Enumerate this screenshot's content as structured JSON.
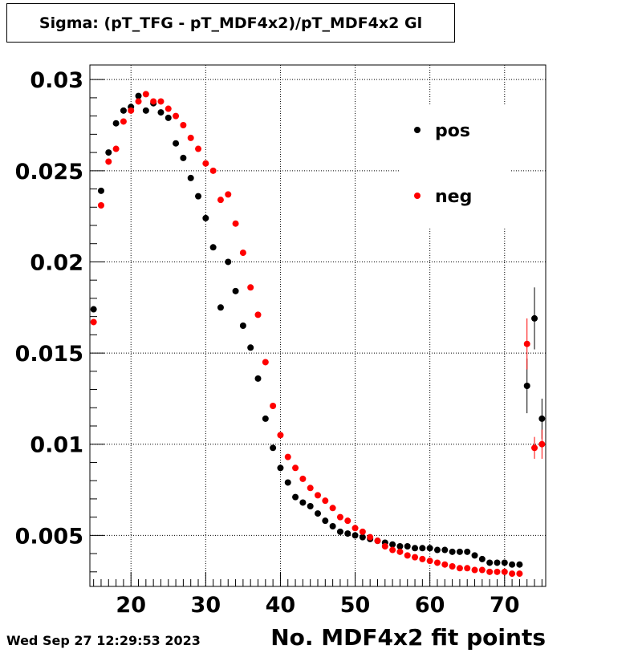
{
  "chart_data": {
    "type": "scatter",
    "title": "Sigma: (pT_TFG - pT_MDF4x2)/pT_MDF4x2 Gl",
    "xlabel": "No. MDF4x2 fit points",
    "ylabel": "",
    "xlim": [
      14.5,
      75.5
    ],
    "ylim": [
      0.0022,
      0.0308
    ],
    "x_ticks": [
      20,
      30,
      40,
      50,
      60,
      70
    ],
    "y_ticks": [
      0.005,
      0.01,
      0.015,
      0.02,
      0.025,
      0.03
    ],
    "y_tick_labels": [
      "0.005",
      "0.01",
      "0.015",
      "0.02",
      "0.025",
      "0.03"
    ],
    "x_tick_labels": [
      "20",
      "30",
      "40",
      "50",
      "60",
      "70"
    ],
    "grid": true,
    "legend_position": "top-right",
    "series": [
      {
        "name": "pos",
        "color": "#000000",
        "points": [
          [
            15,
            0.0174,
            0
          ],
          [
            16,
            0.0239,
            0
          ],
          [
            17,
            0.026,
            0
          ],
          [
            18,
            0.0276,
            0
          ],
          [
            19,
            0.0283,
            0
          ],
          [
            20,
            0.0285,
            0
          ],
          [
            21,
            0.0291,
            0
          ],
          [
            22,
            0.0283,
            0
          ],
          [
            23,
            0.0287,
            0
          ],
          [
            24,
            0.0282,
            0
          ],
          [
            25,
            0.0279,
            0
          ],
          [
            26,
            0.0265,
            0
          ],
          [
            27,
            0.0257,
            0
          ],
          [
            28,
            0.0246,
            0
          ],
          [
            29,
            0.0236,
            0
          ],
          [
            30,
            0.0224,
            0
          ],
          [
            31,
            0.0208,
            0
          ],
          [
            32,
            0.0175,
            0
          ],
          [
            33,
            0.02,
            0
          ],
          [
            34,
            0.0184,
            0
          ],
          [
            35,
            0.0165,
            0
          ],
          [
            36,
            0.0153,
            0
          ],
          [
            37,
            0.0136,
            0
          ],
          [
            38,
            0.0114,
            0
          ],
          [
            39,
            0.0098,
            0
          ],
          [
            40,
            0.0087,
            0
          ],
          [
            41,
            0.0079,
            0
          ],
          [
            42,
            0.0071,
            0
          ],
          [
            43,
            0.0068,
            0
          ],
          [
            44,
            0.0066,
            0
          ],
          [
            45,
            0.0062,
            0
          ],
          [
            46,
            0.0058,
            0
          ],
          [
            47,
            0.0055,
            0
          ],
          [
            48,
            0.0052,
            0
          ],
          [
            49,
            0.0051,
            0
          ],
          [
            50,
            0.005,
            0
          ],
          [
            51,
            0.0049,
            0
          ],
          [
            52,
            0.0048,
            0
          ],
          [
            53,
            0.0047,
            0
          ],
          [
            54,
            0.0046,
            0
          ],
          [
            55,
            0.0045,
            0
          ],
          [
            56,
            0.0044,
            0
          ],
          [
            57,
            0.0044,
            0
          ],
          [
            58,
            0.0043,
            0
          ],
          [
            59,
            0.0043,
            0
          ],
          [
            60,
            0.0043,
            0
          ],
          [
            61,
            0.0042,
            0
          ],
          [
            62,
            0.0042,
            0
          ],
          [
            63,
            0.0041,
            0
          ],
          [
            64,
            0.0041,
            0
          ],
          [
            65,
            0.0041,
            0
          ],
          [
            66,
            0.0039,
            0
          ],
          [
            67,
            0.0037,
            0
          ],
          [
            68,
            0.0035,
            0
          ],
          [
            69,
            0.0035,
            0
          ],
          [
            70,
            0.0035,
            0
          ],
          [
            71,
            0.0034,
            0
          ],
          [
            72,
            0.0034,
            0
          ],
          [
            73,
            0.0132,
            0.0015
          ],
          [
            74,
            0.0169,
            0.0017
          ],
          [
            75,
            0.0114,
            0.0011
          ]
        ]
      },
      {
        "name": "neg",
        "color": "#ff0000",
        "points": [
          [
            15,
            0.0167,
            0
          ],
          [
            16,
            0.0231,
            0
          ],
          [
            17,
            0.0255,
            0
          ],
          [
            18,
            0.0262,
            0
          ],
          [
            19,
            0.0277,
            0
          ],
          [
            20,
            0.0283,
            0
          ],
          [
            21,
            0.0288,
            0
          ],
          [
            22,
            0.0292,
            0
          ],
          [
            23,
            0.0288,
            0
          ],
          [
            24,
            0.0288,
            0
          ],
          [
            25,
            0.0284,
            0
          ],
          [
            26,
            0.028,
            0
          ],
          [
            27,
            0.0275,
            0
          ],
          [
            28,
            0.0268,
            0
          ],
          [
            29,
            0.0262,
            0
          ],
          [
            30,
            0.0254,
            0
          ],
          [
            31,
            0.025,
            0
          ],
          [
            32,
            0.0234,
            0
          ],
          [
            33,
            0.0237,
            0
          ],
          [
            34,
            0.0221,
            0
          ],
          [
            35,
            0.0205,
            0
          ],
          [
            36,
            0.0186,
            0
          ],
          [
            37,
            0.0171,
            0
          ],
          [
            38,
            0.0145,
            0
          ],
          [
            39,
            0.0121,
            0
          ],
          [
            40,
            0.0105,
            0
          ],
          [
            41,
            0.0093,
            0
          ],
          [
            42,
            0.0087,
            0
          ],
          [
            43,
            0.0081,
            0
          ],
          [
            44,
            0.0076,
            0
          ],
          [
            45,
            0.0072,
            0
          ],
          [
            46,
            0.0069,
            0
          ],
          [
            47,
            0.0065,
            0
          ],
          [
            48,
            0.006,
            0
          ],
          [
            49,
            0.0058,
            0
          ],
          [
            50,
            0.0054,
            0
          ],
          [
            51,
            0.0052,
            0
          ],
          [
            52,
            0.0049,
            0
          ],
          [
            53,
            0.0047,
            0
          ],
          [
            54,
            0.0044,
            0
          ],
          [
            55,
            0.0042,
            0
          ],
          [
            56,
            0.0041,
            0
          ],
          [
            57,
            0.0039,
            0
          ],
          [
            58,
            0.0038,
            0
          ],
          [
            59,
            0.0037,
            0
          ],
          [
            60,
            0.0036,
            0
          ],
          [
            61,
            0.0035,
            0
          ],
          [
            62,
            0.0034,
            0
          ],
          [
            63,
            0.0033,
            0
          ],
          [
            64,
            0.0032,
            0
          ],
          [
            65,
            0.0032,
            0
          ],
          [
            66,
            0.0031,
            0
          ],
          [
            67,
            0.0031,
            0
          ],
          [
            68,
            0.003,
            0
          ],
          [
            69,
            0.003,
            0
          ],
          [
            70,
            0.003,
            0
          ],
          [
            71,
            0.0029,
            0
          ],
          [
            72,
            0.0029,
            0
          ],
          [
            73,
            0.0155,
            0.0014
          ],
          [
            74,
            0.0098,
            0.0006
          ],
          [
            75,
            0.01,
            0.0008
          ]
        ]
      }
    ]
  },
  "timestamp": "Wed Sep 27 12:29:53 2023"
}
